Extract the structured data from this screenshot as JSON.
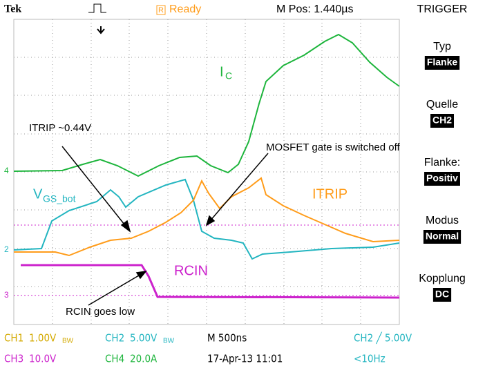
{
  "header": {
    "logo": "Tek",
    "status_icon": "R",
    "status": "Ready",
    "position": "M Pos: 1.440µs",
    "menu_title": "TRIGGER"
  },
  "menu": [
    {
      "label": "Typ",
      "value": "Flanke"
    },
    {
      "label": "Quelle",
      "value": "CH2"
    },
    {
      "label": "Flanke:",
      "value": "Positiv"
    },
    {
      "label": "Modus",
      "value": "Normal"
    },
    {
      "label": "Kopplung",
      "value": "DC"
    }
  ],
  "annotations": {
    "ic": "I",
    "ic_sub": "C",
    "itrip_level": "ITRIP ~0.44V",
    "mosfet": "MOSFET gate is switched off",
    "vgs": "V",
    "vgs_sub": "GS_bot",
    "itrip": "ITRIP",
    "rcin": "RCIN",
    "rcin_low": "RCIN goes low"
  },
  "channel_markers": {
    "ch4": "4",
    "ch2": "2",
    "ch3": "3"
  },
  "footer": {
    "ch1": "CH1",
    "ch1_scale": "1.00V",
    "ch1_bw": "BW",
    "ch2": "CH2",
    "ch2_scale": "5.00V",
    "ch2_bw": "BW",
    "timebase": "M 500ns",
    "trigger": "CH2 ╱ 5.00V",
    "ch3": "CH3",
    "ch3_scale": "10.0V",
    "ch4": "CH4",
    "ch4_scale": "20.0A",
    "date": "17-Apr-13 11:01",
    "freq": "<10Hz"
  }
}
